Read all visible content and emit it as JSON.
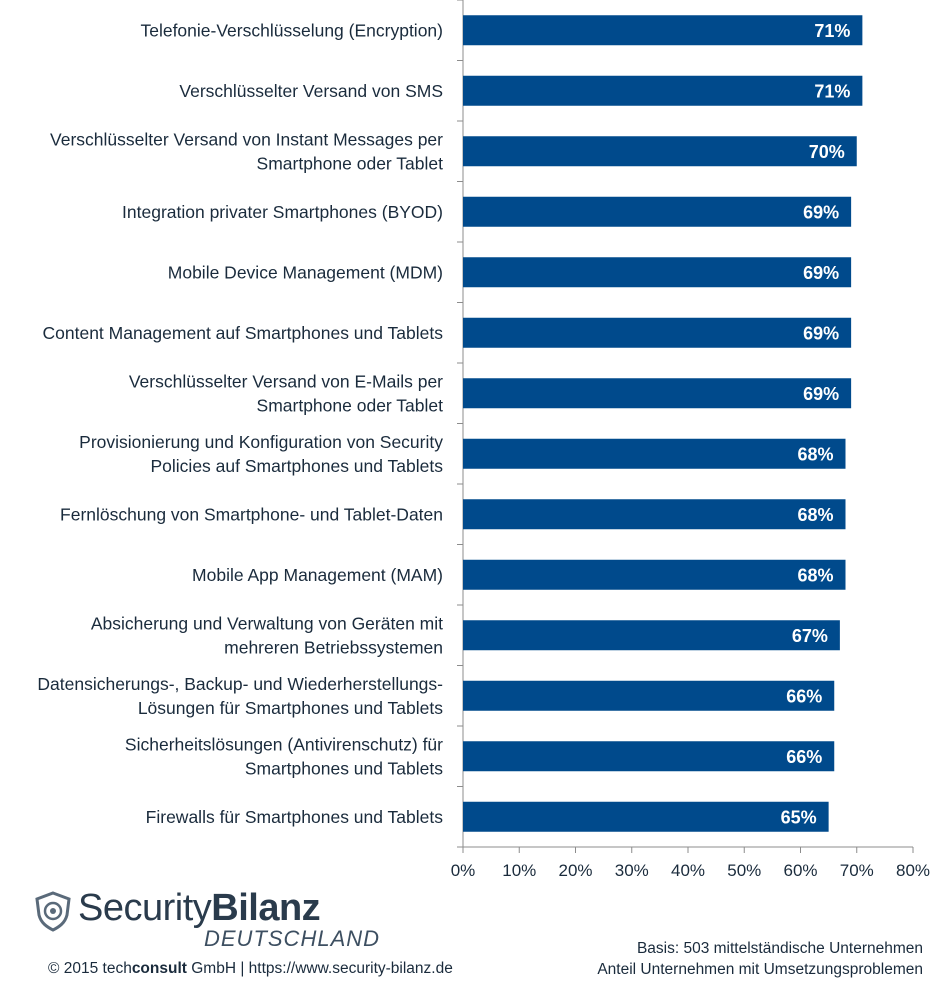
{
  "chart_data": {
    "type": "bar",
    "orientation": "horizontal",
    "categories": [
      [
        "Telefonie-Verschlüsselung (Encryption)"
      ],
      [
        "Verschlüsselter Versand von SMS"
      ],
      [
        "Verschlüsselter Versand von Instant Messages per",
        "Smartphone oder Tablet"
      ],
      [
        "Integration privater Smartphones (BYOD)"
      ],
      [
        "Mobile Device Management (MDM)"
      ],
      [
        "Content Management auf Smartphones und Tablets"
      ],
      [
        "Verschlüsselter Versand von E-Mails per",
        "Smartphone oder Tablet"
      ],
      [
        "Provisionierung und Konfiguration von Security",
        "Policies auf Smartphones und Tablets"
      ],
      [
        "Fernlöschung von Smartphone- und Tablet-Daten"
      ],
      [
        "Mobile App Management (MAM)"
      ],
      [
        "Absicherung und Verwaltung von Geräten mit",
        "mehreren Betriebssystemen"
      ],
      [
        "Datensicherungs-, Backup- und Wiederherstellungs-",
        "Lösungen für Smartphones und Tablets"
      ],
      [
        "Sicherheitslösungen (Antivirenschutz) für",
        "Smartphones und Tablets"
      ],
      [
        "Firewalls für Smartphones und Tablets"
      ]
    ],
    "values": [
      71,
      71,
      70,
      69,
      69,
      69,
      69,
      68,
      68,
      68,
      67,
      66,
      66,
      65
    ],
    "value_labels": [
      "71%",
      "71%",
      "70%",
      "69%",
      "69%",
      "69%",
      "69%",
      "68%",
      "68%",
      "68%",
      "67%",
      "66%",
      "66%",
      "65%"
    ],
    "xlim": [
      0,
      80
    ],
    "xticks": [
      "0%",
      "10%",
      "20%",
      "30%",
      "40%",
      "50%",
      "60%",
      "70%",
      "80%"
    ],
    "bar_color": "#004a8c",
    "grid": false
  },
  "logo": {
    "word1": "Security",
    "word2": "Bilanz",
    "sub": "DEUTSCHLAND"
  },
  "footer": {
    "copyright_pre": "© 2015 tech",
    "copyright_bold": "consult",
    "copyright_post": " GmbH | https://www.security-bilanz.de",
    "note1": "Basis: 503 mittelständische Unternehmen",
    "note2": "Anteil Unternehmen mit Umsetzungsproblemen"
  }
}
